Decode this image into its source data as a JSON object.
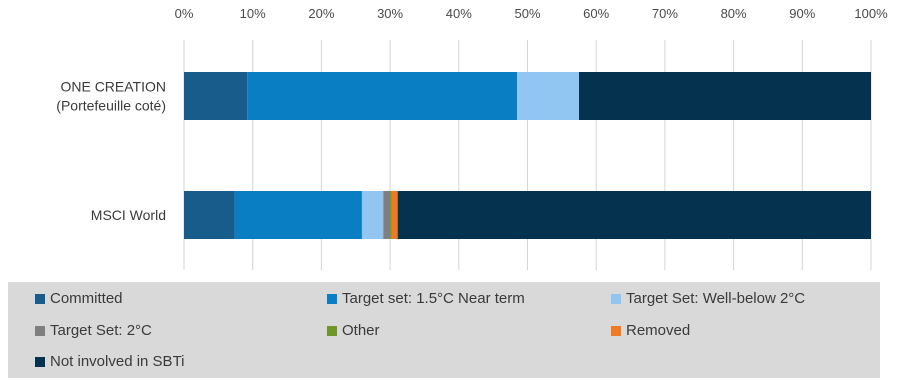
{
  "chart_data": {
    "type": "bar",
    "orientation": "horizontal",
    "stacked": true,
    "xlim": [
      0,
      100
    ],
    "x_ticks": [
      "0%",
      "10%",
      "20%",
      "30%",
      "40%",
      "50%",
      "60%",
      "70%",
      "80%",
      "90%",
      "100%"
    ],
    "categories": [
      [
        "ONE CREATION",
        "(Portefeuille coté)"
      ],
      [
        "MSCI World"
      ]
    ],
    "series": [
      {
        "name": "Committed",
        "color": "#175c8a",
        "values": [
          9.2,
          7.4
        ]
      },
      {
        "name": "Target set: 1.5°C Near term",
        "color": "#0a7ec2",
        "values": [
          39.3,
          18.5
        ]
      },
      {
        "name": "Target Set: Well-below 2°C",
        "color": "#92c6f2",
        "values": [
          9.0,
          3.1
        ]
      },
      {
        "name": "Target Set: 2°C",
        "color": "#7f7f7f",
        "values": [
          0,
          1.0
        ]
      },
      {
        "name": "Other",
        "color": "#6f9628",
        "values": [
          0,
          0.2
        ]
      },
      {
        "name": "Removed",
        "color": "#f07a22",
        "values": [
          0,
          0.9
        ]
      },
      {
        "name": "Not involved in SBTi",
        "color": "#04324f",
        "values": [
          42.5,
          68.9
        ]
      }
    ],
    "grid": true,
    "legend_position": "bottom"
  }
}
